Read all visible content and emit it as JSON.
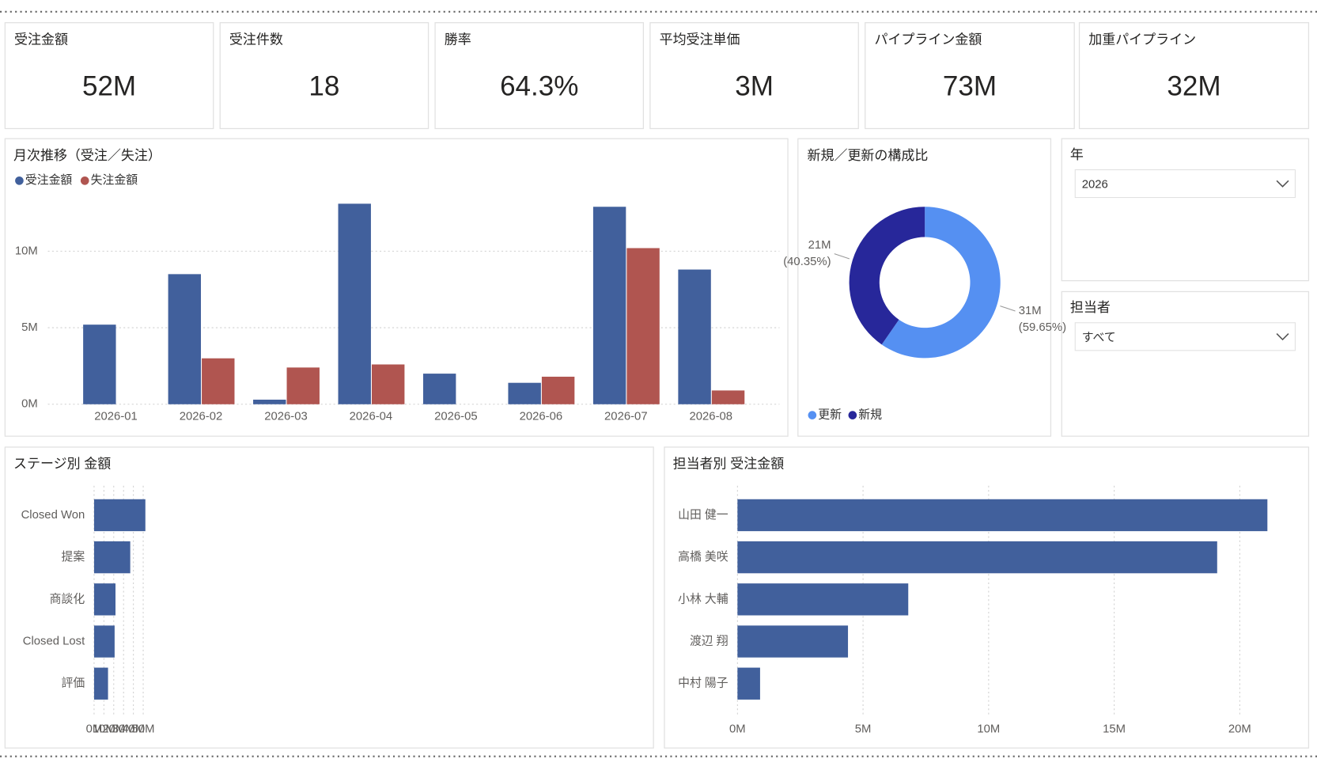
{
  "kpis": [
    {
      "label": "受注金額",
      "value": "52M"
    },
    {
      "label": "受注件数",
      "value": "18"
    },
    {
      "label": "勝率",
      "value": "64.3%"
    },
    {
      "label": "平均受注単価",
      "value": "3M"
    },
    {
      "label": "パイプライン金額",
      "value": "73M"
    },
    {
      "label": "加重パイプライン",
      "value": "32M"
    }
  ],
  "slicers": [
    {
      "label": "年",
      "value": "2026"
    },
    {
      "label": "担当者",
      "value": "すべて"
    }
  ],
  "chart_data": [
    {
      "type": "bar",
      "title": "月次推移（受注／失注）",
      "categories": [
        "2026-01",
        "2026-02",
        "2026-03",
        "2026-04",
        "2026-05",
        "2026-06",
        "2026-07",
        "2026-08"
      ],
      "series": [
        {
          "name": "受注金額",
          "color": "#41609c",
          "values": [
            5.2,
            8.5,
            0.3,
            13.1,
            2.0,
            1.4,
            12.9,
            8.8
          ]
        },
        {
          "name": "失注金額",
          "color": "#b05550",
          "values": [
            null,
            3.0,
            2.4,
            2.6,
            null,
            1.8,
            10.2,
            0.9
          ]
        }
      ],
      "ylim": [
        0,
        14
      ],
      "yticks": [
        {
          "value": 0,
          "label": "0M"
        },
        {
          "value": 5,
          "label": "5M"
        },
        {
          "value": 10,
          "label": "10M"
        }
      ],
      "grid": true,
      "legend": "top-left"
    },
    {
      "type": "donut",
      "title": "新規／更新の構成比",
      "categories": [
        "更新",
        "新規"
      ],
      "values": [
        59.65,
        40.35
      ],
      "value_labels": [
        [
          "31M",
          "(59.65%)"
        ],
        [
          "21M",
          "(40.35%)"
        ]
      ],
      "colors": [
        "#5590f2",
        "#27279a"
      ],
      "legend": "bottom-left"
    },
    {
      "type": "barh",
      "title": "ステージ別 金額",
      "categories": [
        "Closed Won",
        "提案",
        "商談化",
        "Closed Lost",
        "評価"
      ],
      "values": [
        52.2,
        36.8,
        21.8,
        20.9,
        14.2
      ],
      "color": "#41609c",
      "xlim": [
        0,
        56
      ],
      "xticks": [
        {
          "value": 0,
          "label": "0M"
        },
        {
          "value": 10,
          "label": "10M"
        },
        {
          "value": 20,
          "label": "20M"
        },
        {
          "value": 30,
          "label": "30M"
        },
        {
          "value": 40,
          "label": "40M"
        },
        {
          "value": 50,
          "label": "50M"
        }
      ],
      "grid": true
    },
    {
      "type": "barh",
      "title": "担当者別 受注金額",
      "categories": [
        "山田 健一",
        "高橋 美咲",
        "小林 大輔",
        "渡辺 翔",
        "中村 陽子"
      ],
      "values": [
        21.1,
        19.1,
        6.8,
        4.4,
        0.9
      ],
      "color": "#41609c",
      "xlim": [
        0,
        22
      ],
      "xticks": [
        {
          "value": 0,
          "label": "0M"
        },
        {
          "value": 5,
          "label": "5M"
        },
        {
          "value": 10,
          "label": "10M"
        },
        {
          "value": 15,
          "label": "15M"
        },
        {
          "value": 20,
          "label": "20M"
        }
      ],
      "grid": true
    }
  ]
}
